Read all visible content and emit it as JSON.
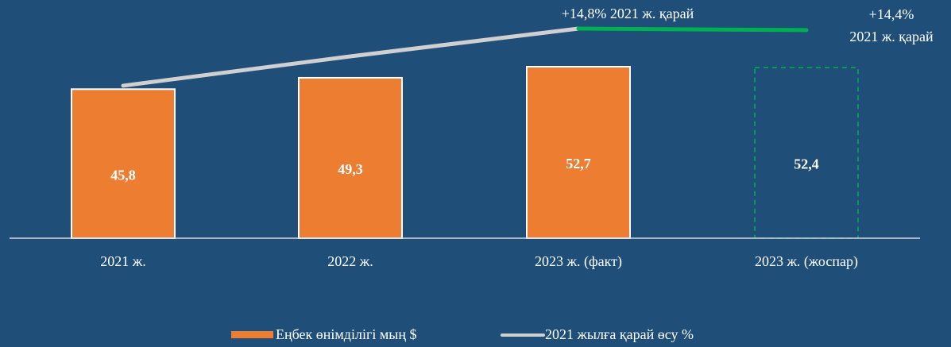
{
  "chart_data": {
    "type": "bar",
    "categories": [
      "2021 ж.",
      "2022 ж.",
      "2023 ж. (факт)",
      "2023 ж. (жоспар)"
    ],
    "series": [
      {
        "name": "Еңбек өнімділігі мың $",
        "color": "#ed7d31",
        "values": [
          45.8,
          49.3,
          52.7,
          52.4
        ],
        "value_labels": [
          "45,8",
          "49,3",
          "52,7",
          "52,4"
        ]
      },
      {
        "name": "2021 жылға қарай өсу %",
        "color": "#d0d0d0",
        "axis": "y2",
        "values": [
          0,
          7.6,
          14.8,
          14.4
        ]
      }
    ],
    "plan_color": "#00b050",
    "annotations": [
      {
        "text": "+14,8% 2021 ж. қарай"
      },
      {
        "lines": [
          "+14,4%",
          "2021 ж. қарай"
        ]
      }
    ],
    "ylim": [
      0,
      73.2
    ],
    "y2lim": [
      -39.5,
      22.2
    ],
    "grid": false
  }
}
